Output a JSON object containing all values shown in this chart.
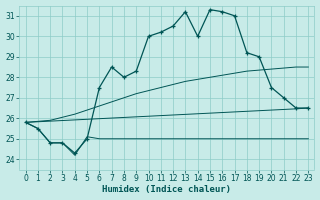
{
  "xlabel": "Humidex (Indice chaleur)",
  "bg_color": "#c8ebe8",
  "grid_color": "#8eccc8",
  "line_color": "#005555",
  "xlim": [
    -0.5,
    23.5
  ],
  "ylim": [
    23.5,
    31.5
  ],
  "x_ticks": [
    0,
    1,
    2,
    3,
    4,
    5,
    6,
    7,
    8,
    9,
    10,
    11,
    12,
    13,
    14,
    15,
    16,
    17,
    18,
    19,
    20,
    21,
    22,
    23
  ],
  "y_ticks": [
    24,
    25,
    26,
    27,
    28,
    29,
    30,
    31
  ],
  "humidex": [
    25.8,
    25.5,
    24.8,
    24.8,
    24.3,
    25.0,
    27.5,
    28.5,
    28.0,
    28.3,
    30.0,
    30.2,
    30.5,
    31.2,
    30.0,
    31.3,
    31.2,
    31.0,
    29.2,
    29.0,
    27.5,
    27.0,
    26.5,
    26.5
  ],
  "flat_temp": [
    25.8,
    25.5,
    24.8,
    24.8,
    24.2,
    25.1,
    25.0,
    25.0,
    25.0,
    25.0,
    25.0,
    25.0,
    25.0,
    25.0,
    25.0,
    25.0,
    25.0,
    25.0,
    25.0,
    25.0,
    25.0,
    25.0,
    25.0,
    25.0
  ],
  "trend_steep": [
    25.8,
    25.85,
    25.9,
    26.05,
    26.2,
    26.4,
    26.6,
    26.8,
    27.0,
    27.2,
    27.35,
    27.5,
    27.65,
    27.8,
    27.9,
    28.0,
    28.1,
    28.2,
    28.3,
    28.35,
    28.4,
    28.45,
    28.5,
    28.5
  ],
  "trend_shallow": [
    25.8,
    25.83,
    25.86,
    25.89,
    25.92,
    25.95,
    25.98,
    26.01,
    26.04,
    26.07,
    26.1,
    26.13,
    26.16,
    26.19,
    26.22,
    26.25,
    26.28,
    26.31,
    26.34,
    26.37,
    26.4,
    26.43,
    26.46,
    26.5
  ]
}
